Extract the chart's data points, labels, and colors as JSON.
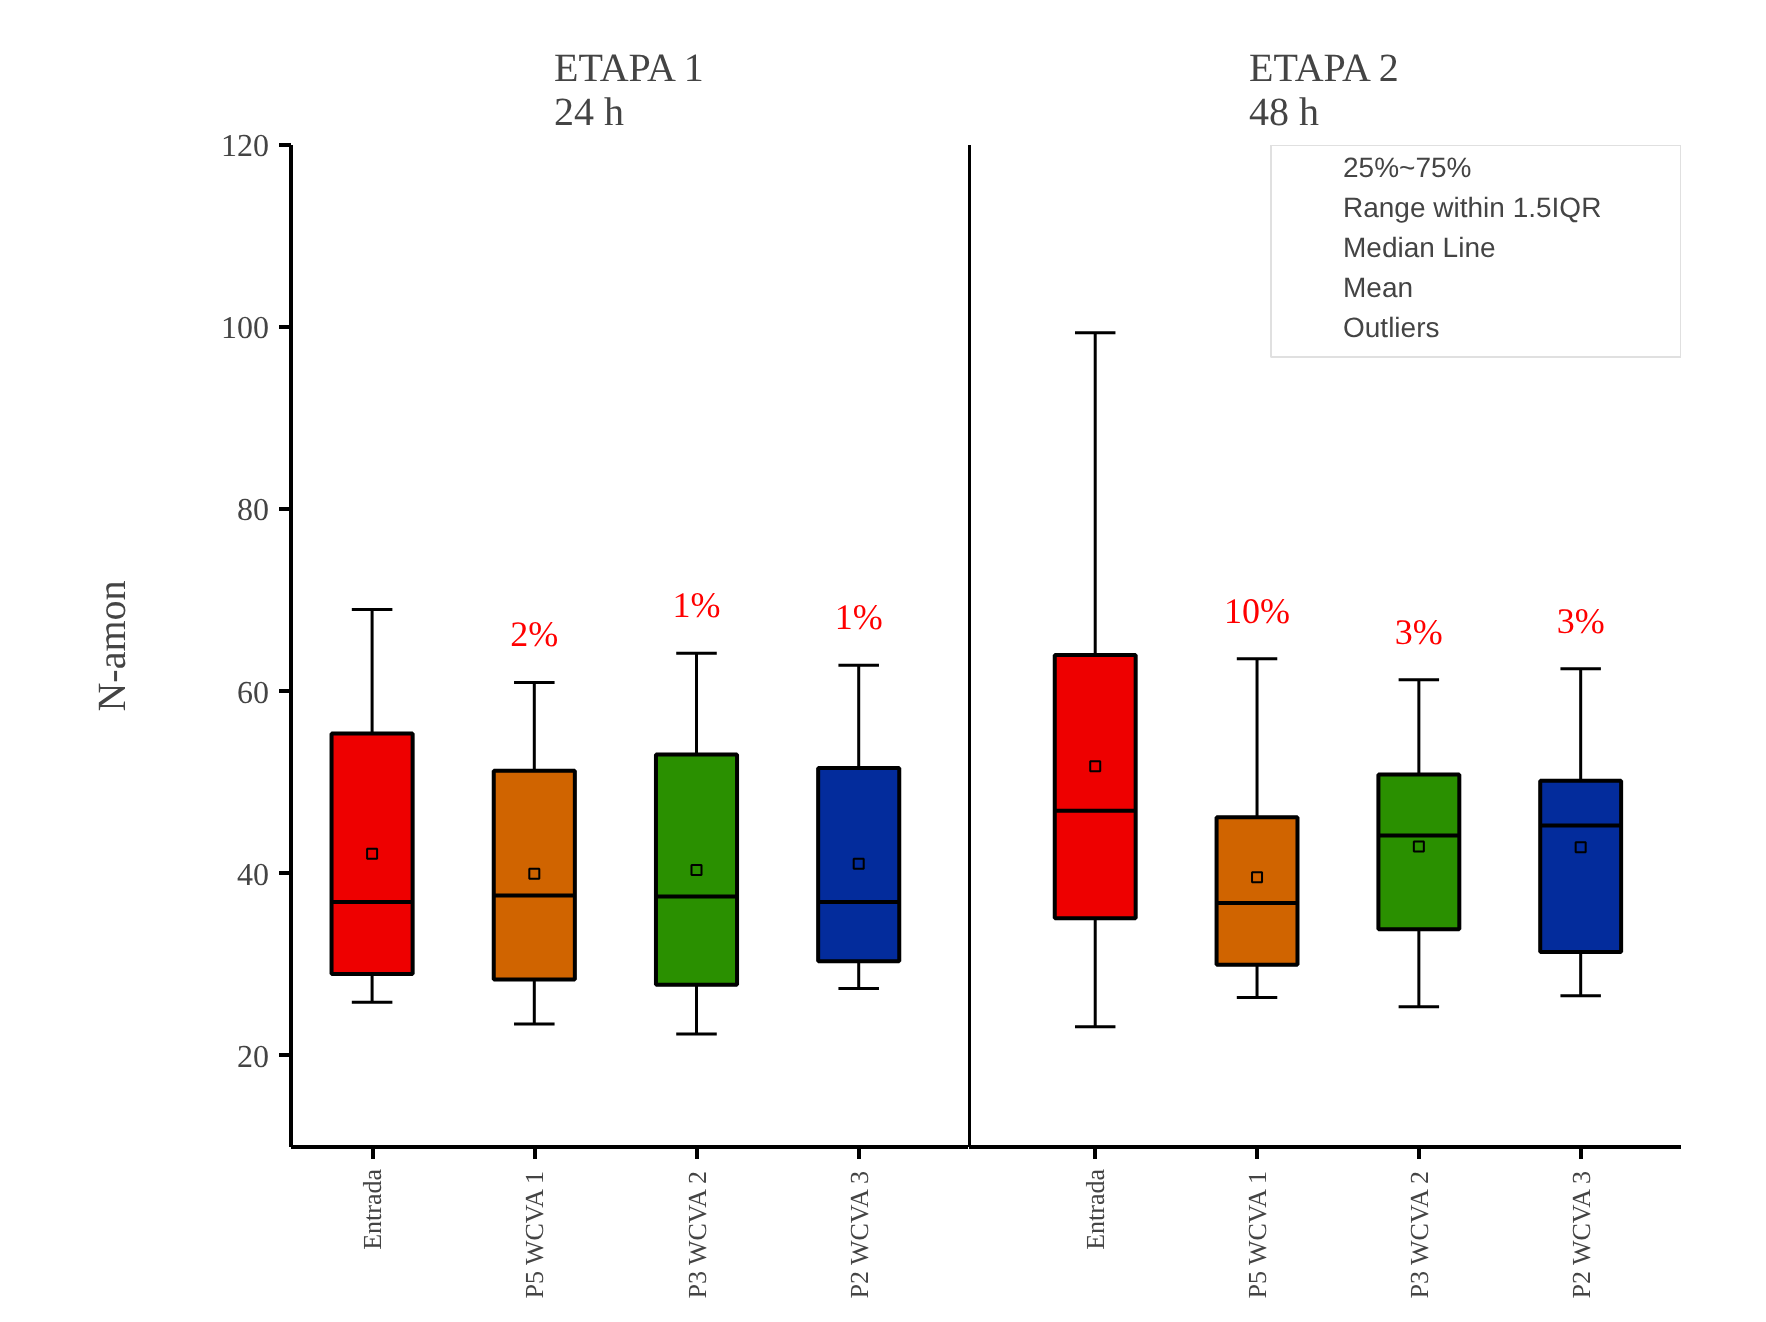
{
  "chart_data": [
    {
      "type": "box",
      "title": "ETAPA 1\n24 h",
      "ylabel": "N-amon",
      "categories": [
        "Entrada",
        "P5 WCVA 1",
        "P3 WCVA 2",
        "P2 WCVA 3"
      ],
      "colors": [
        "#ee0000",
        "#d06400",
        "#2a9000",
        "#032c9c"
      ],
      "boxes": [
        {
          "low": 25.9,
          "q1": 29.0,
          "median": 36.9,
          "q3": 55.4,
          "high": 69.0,
          "mean": 42.2
        },
        {
          "low": 23.5,
          "q1": 28.4,
          "median": 37.6,
          "q3": 51.3,
          "high": 61.0,
          "mean": 40.0
        },
        {
          "low": 22.4,
          "q1": 27.8,
          "median": 37.5,
          "q3": 53.1,
          "high": 64.2,
          "mean": 40.4
        },
        {
          "low": 27.4,
          "q1": 30.4,
          "median": 36.9,
          "q3": 51.6,
          "high": 62.9,
          "mean": 41.1
        }
      ],
      "ylim": [
        10,
        120
      ],
      "yticks": [
        20,
        40,
        60,
        80,
        100,
        120
      ],
      "grid": false,
      "annotations": [
        "2%",
        "1%",
        "1%"
      ]
    },
    {
      "type": "box",
      "title": "ETAPA 2\n48 h",
      "categories": [
        "Entrada",
        "P5 WCVA 1",
        "P3 WCVA 2",
        "P2 WCVA 3"
      ],
      "colors": [
        "#ee0000",
        "#d06400",
        "#2a9000",
        "#032c9c"
      ],
      "boxes": [
        {
          "low": 23.2,
          "q1": 35.1,
          "median": 46.9,
          "q3": 64.0,
          "high": 99.4,
          "mean": 51.8
        },
        {
          "low": 26.4,
          "q1": 30.0,
          "median": 36.8,
          "q3": 46.2,
          "high": 63.6,
          "mean": 39.6
        },
        {
          "low": 25.4,
          "q1": 33.9,
          "median": 44.2,
          "q3": 50.9,
          "high": 61.3,
          "mean": 43.0
        },
        {
          "low": 26.6,
          "q1": 31.4,
          "median": 45.3,
          "q3": 50.2,
          "high": 62.5,
          "mean": 42.9
        }
      ],
      "ylim": [
        10,
        120
      ],
      "tick_labels": "x",
      "grid": false,
      "annotations": [
        "10%",
        "3%",
        "3%",
        "25%~75%",
        "Range within 1.5IQR",
        "Median Line",
        "Mean",
        "Outliers"
      ]
    }
  ]
}
